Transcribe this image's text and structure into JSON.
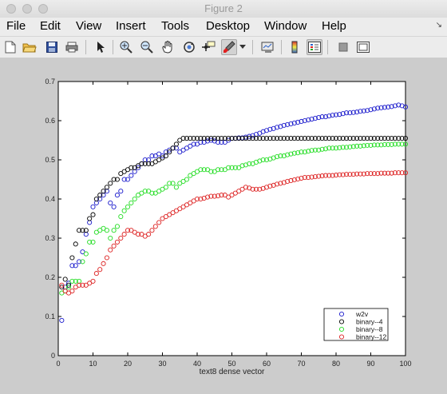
{
  "window": {
    "title": "Figure 2"
  },
  "menu": {
    "items": [
      "File",
      "Edit",
      "View",
      "Insert",
      "Tools",
      "Desktop",
      "Window",
      "Help"
    ]
  },
  "toolbar": {
    "icons": [
      "new-figure-icon",
      "open-file-icon",
      "save-icon",
      "print-icon",
      "edit-plot-arrow-icon",
      "zoom-in-icon",
      "zoom-out-icon",
      "pan-hand-icon",
      "rotate-3d-icon",
      "data-cursor-icon",
      "brush-icon",
      "brush-dropdown-icon",
      "link-plot-icon",
      "insert-colorbar-icon",
      "insert-legend-icon",
      "hide-plot-tools-icon",
      "show-plot-tools-icon"
    ]
  },
  "colors": {
    "w2v": "#1a1acc",
    "binary_4": "#000000",
    "binary_8": "#22dd22",
    "binary_12": "#dd2222",
    "figure_bg": "#cccccc"
  },
  "chart_data": {
    "type": "scatter",
    "title": "",
    "xlabel": "text8 dense vector",
    "ylabel": "",
    "xlim": [
      0,
      100
    ],
    "ylim": [
      0,
      0.7
    ],
    "xticks": [
      0,
      10,
      20,
      30,
      40,
      50,
      60,
      70,
      80,
      90,
      100
    ],
    "yticks": [
      0,
      0.1,
      0.2,
      0.3,
      0.4,
      0.5,
      0.6,
      0.7
    ],
    "marker": "o",
    "legend_position": "bottom-right",
    "legend": [
      "w2v",
      "binary--4",
      "binary--8",
      "binary--12"
    ],
    "x": [
      1,
      2,
      3,
      4,
      5,
      6,
      7,
      8,
      9,
      10,
      11,
      12,
      13,
      14,
      15,
      16,
      17,
      18,
      19,
      20,
      21,
      22,
      23,
      24,
      25,
      26,
      27,
      28,
      29,
      30,
      31,
      32,
      33,
      34,
      35,
      36,
      37,
      38,
      39,
      40,
      41,
      42,
      43,
      44,
      45,
      46,
      47,
      48,
      49,
      50,
      51,
      52,
      53,
      54,
      55,
      56,
      57,
      58,
      59,
      60,
      61,
      62,
      63,
      64,
      65,
      66,
      67,
      68,
      69,
      70,
      71,
      72,
      73,
      74,
      75,
      76,
      77,
      78,
      79,
      80,
      81,
      82,
      83,
      84,
      85,
      86,
      87,
      88,
      89,
      90,
      91,
      92,
      93,
      94,
      95,
      96,
      97,
      98,
      99,
      100
    ],
    "series": [
      {
        "name": "w2v",
        "values": [
          0.09,
          0.175,
          0.185,
          0.23,
          0.23,
          0.24,
          0.265,
          0.31,
          0.34,
          0.38,
          0.39,
          0.4,
          0.41,
          0.42,
          0.39,
          0.38,
          0.41,
          0.42,
          0.45,
          0.45,
          0.46,
          0.47,
          0.48,
          0.49,
          0.5,
          0.5,
          0.51,
          0.51,
          0.515,
          0.51,
          0.52,
          0.525,
          0.53,
          0.53,
          0.52,
          0.525,
          0.53,
          0.535,
          0.54,
          0.54,
          0.545,
          0.545,
          0.548,
          0.55,
          0.548,
          0.545,
          0.545,
          0.545,
          0.55,
          0.555,
          0.555,
          0.556,
          0.556,
          0.558,
          0.56,
          0.562,
          0.565,
          0.568,
          0.572,
          0.575,
          0.578,
          0.58,
          0.583,
          0.585,
          0.588,
          0.59,
          0.592,
          0.594,
          0.596,
          0.598,
          0.6,
          0.602,
          0.604,
          0.606,
          0.608,
          0.61,
          0.61,
          0.612,
          0.614,
          0.615,
          0.616,
          0.618,
          0.62,
          0.62,
          0.621,
          0.622,
          0.624,
          0.625,
          0.626,
          0.628,
          0.63,
          0.632,
          0.633,
          0.634,
          0.635,
          0.636,
          0.638,
          0.64,
          0.638,
          0.635
        ]
      },
      {
        "name": "binary--4",
        "values": [
          0.175,
          0.195,
          0.18,
          0.25,
          0.285,
          0.32,
          0.32,
          0.32,
          0.35,
          0.36,
          0.4,
          0.41,
          0.42,
          0.43,
          0.44,
          0.45,
          0.45,
          0.465,
          0.47,
          0.475,
          0.48,
          0.48,
          0.485,
          0.49,
          0.49,
          0.49,
          0.49,
          0.495,
          0.5,
          0.505,
          0.51,
          0.52,
          0.53,
          0.54,
          0.55,
          0.555,
          0.555,
          0.555,
          0.555,
          0.555,
          0.555,
          0.555,
          0.555,
          0.555,
          0.555,
          0.555,
          0.555,
          0.555,
          0.555,
          0.555,
          0.555,
          0.555,
          0.555,
          0.555,
          0.555,
          0.555,
          0.555,
          0.555,
          0.555,
          0.555,
          0.555,
          0.555,
          0.555,
          0.555,
          0.555,
          0.555,
          0.555,
          0.555,
          0.555,
          0.555,
          0.555,
          0.555,
          0.555,
          0.555,
          0.555,
          0.555,
          0.555,
          0.555,
          0.555,
          0.555,
          0.555,
          0.555,
          0.555,
          0.555,
          0.555,
          0.555,
          0.555,
          0.555,
          0.555,
          0.555,
          0.555,
          0.555,
          0.555,
          0.555,
          0.555,
          0.555,
          0.555,
          0.555,
          0.555,
          0.555
        ]
      },
      {
        "name": "binary--8",
        "values": [
          0.16,
          0.165,
          0.175,
          0.19,
          0.19,
          0.19,
          0.24,
          0.26,
          0.29,
          0.29,
          0.315,
          0.32,
          0.325,
          0.32,
          0.3,
          0.32,
          0.33,
          0.355,
          0.37,
          0.38,
          0.39,
          0.4,
          0.41,
          0.415,
          0.42,
          0.42,
          0.415,
          0.415,
          0.42,
          0.425,
          0.43,
          0.44,
          0.44,
          0.43,
          0.44,
          0.445,
          0.45,
          0.46,
          0.465,
          0.47,
          0.475,
          0.475,
          0.475,
          0.47,
          0.47,
          0.475,
          0.475,
          0.475,
          0.48,
          0.48,
          0.48,
          0.48,
          0.485,
          0.487,
          0.49,
          0.49,
          0.494,
          0.497,
          0.5,
          0.5,
          0.502,
          0.505,
          0.508,
          0.51,
          0.51,
          0.513,
          0.515,
          0.517,
          0.518,
          0.52,
          0.52,
          0.522,
          0.524,
          0.525,
          0.525,
          0.527,
          0.528,
          0.53,
          0.53,
          0.53,
          0.531,
          0.532,
          0.532,
          0.533,
          0.534,
          0.535,
          0.535,
          0.536,
          0.537,
          0.537,
          0.538,
          0.538,
          0.538,
          0.539,
          0.539,
          0.539,
          0.54,
          0.54,
          0.54,
          0.54
        ]
      },
      {
        "name": "binary--12",
        "values": [
          0.18,
          0.165,
          0.16,
          0.165,
          0.175,
          0.18,
          0.18,
          0.18,
          0.185,
          0.19,
          0.21,
          0.22,
          0.235,
          0.25,
          0.27,
          0.28,
          0.29,
          0.3,
          0.31,
          0.32,
          0.32,
          0.315,
          0.31,
          0.31,
          0.305,
          0.31,
          0.32,
          0.33,
          0.34,
          0.35,
          0.355,
          0.36,
          0.365,
          0.37,
          0.375,
          0.38,
          0.385,
          0.39,
          0.395,
          0.4,
          0.4,
          0.402,
          0.405,
          0.407,
          0.407,
          0.408,
          0.41,
          0.41,
          0.405,
          0.41,
          0.415,
          0.42,
          0.425,
          0.43,
          0.428,
          0.425,
          0.425,
          0.425,
          0.427,
          0.43,
          0.433,
          0.435,
          0.438,
          0.44,
          0.442,
          0.445,
          0.447,
          0.449,
          0.451,
          0.453,
          0.455,
          0.455,
          0.456,
          0.457,
          0.458,
          0.459,
          0.46,
          0.46,
          0.46,
          0.461,
          0.462,
          0.462,
          0.463,
          0.463,
          0.463,
          0.464,
          0.464,
          0.464,
          0.465,
          0.465,
          0.465,
          0.465,
          0.466,
          0.466,
          0.466,
          0.466,
          0.467,
          0.467,
          0.467,
          0.467
        ]
      }
    ]
  }
}
